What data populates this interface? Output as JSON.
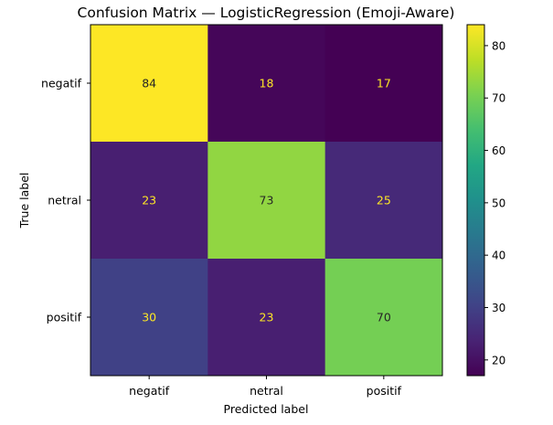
{
  "chart_data": {
    "type": "heatmap",
    "title": "Confusion Matrix — LogisticRegression (Emoji-Aware)",
    "xlabel": "Predicted label",
    "ylabel": "True label",
    "x_categories": [
      "negatif",
      "netral",
      "positif"
    ],
    "y_categories": [
      "negatif",
      "netral",
      "positif"
    ],
    "matrix": [
      [
        84,
        18,
        17
      ],
      [
        23,
        73,
        25
      ],
      [
        30,
        23,
        70
      ]
    ],
    "colormap": "viridis",
    "colorbar": {
      "range": [
        17,
        84
      ],
      "ticks": [
        20,
        30,
        40,
        50,
        60,
        70,
        80
      ]
    },
    "grid": false
  }
}
